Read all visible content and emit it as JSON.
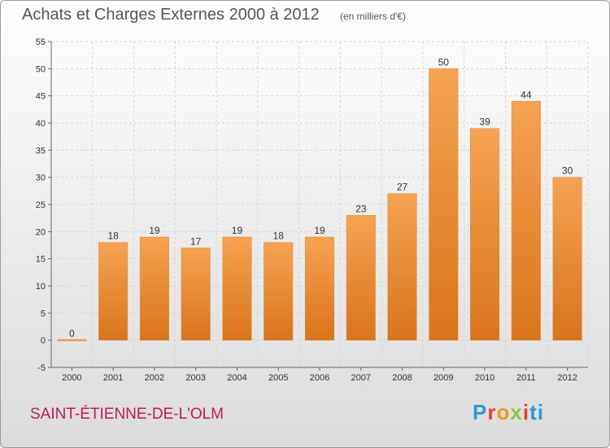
{
  "chart_data": {
    "type": "bar",
    "title": "Achats et Charges Externes 2000 à 2012",
    "subtitle": "(en milliers d'€)",
    "categories": [
      "2000",
      "2001",
      "2002",
      "2003",
      "2004",
      "2005",
      "2006",
      "2007",
      "2008",
      "2009",
      "2010",
      "2011",
      "2012"
    ],
    "values": [
      0,
      18,
      19,
      17,
      19,
      18,
      19,
      23,
      27,
      50,
      39,
      44,
      30
    ],
    "ylim": [
      -5,
      55
    ],
    "yticks": [
      -5,
      0,
      5,
      10,
      15,
      20,
      25,
      30,
      35,
      40,
      45,
      50,
      55
    ],
    "xlabel": "",
    "ylabel": "",
    "grid": true,
    "bar_color": "#f0902e"
  },
  "commune": "SAINT-ÉTIENNE-DE-L'OLM",
  "logo": {
    "letters": [
      "P",
      "r",
      "o",
      "x",
      "i",
      "t",
      "i"
    ]
  }
}
